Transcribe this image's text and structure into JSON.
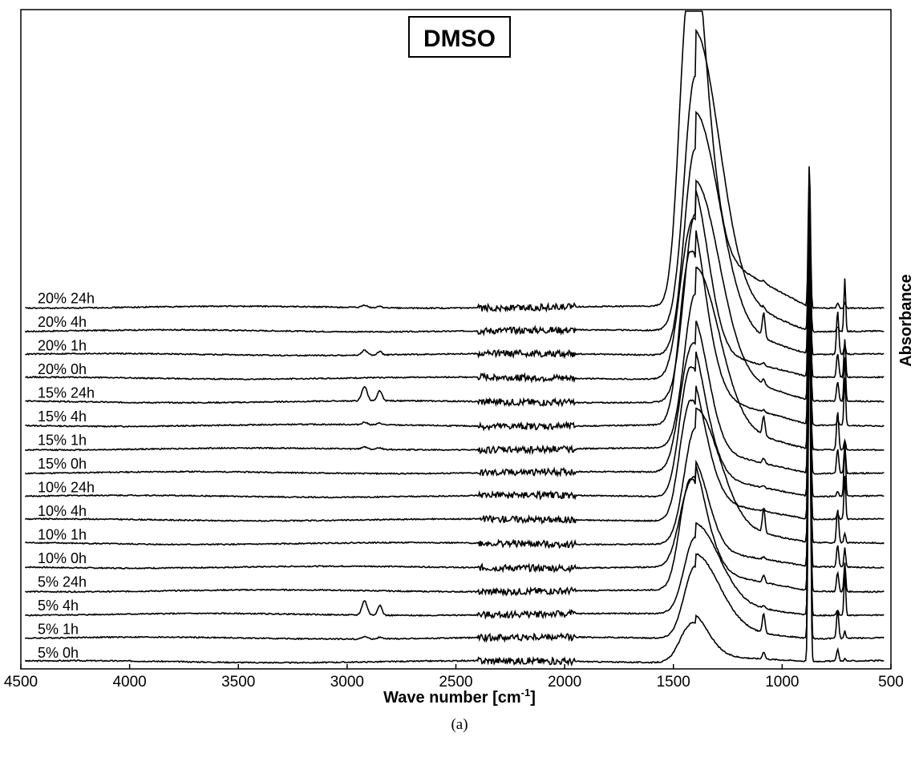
{
  "chart_data": {
    "type": "line",
    "title": "DMSO",
    "xlabel": "Wave number [cm-1]",
    "xlabel_main": "Wave number [cm",
    "xlabel_sup": "-1",
    "xlabel_end": "]",
    "ylabel": "Absorbance",
    "caption": "(a)",
    "xlim": [
      4500,
      500
    ],
    "x_ticks": [
      4500,
      4000,
      3500,
      3000,
      2500,
      2000,
      1500,
      1000,
      500
    ],
    "grid": false,
    "offset_traces": true,
    "series": [
      {
        "name": "5% 0h",
        "peak_1420": 0.9,
        "peak_1410_shape": "flat",
        "peak_880": 7.6,
        "peak_1090": 0.15,
        "peak_750": 0.25,
        "peak_710": 0.05,
        "c_h_2920": 0.0
      },
      {
        "name": "5% 1h",
        "peak_1420": 1.5,
        "peak_1410_shape": "broad",
        "peak_880": 7.3,
        "peak_1090": 0.4,
        "peak_750": 0.6,
        "peak_710": 0.15,
        "c_h_2920": 0.05
      },
      {
        "name": "5% 4h",
        "peak_1420": 1.6,
        "peak_1410_shape": "broad",
        "peak_880": 6.9,
        "peak_1090": 0.05,
        "peak_750": 0.1,
        "peak_710": 0.9,
        "c_h_2920": 0.3
      },
      {
        "name": "5% 24h",
        "peak_1420": 2.3,
        "peak_1410_shape": "sharp",
        "peak_880": 6.6,
        "peak_1090": 0.15,
        "peak_750": 0.4,
        "peak_710": 0.6,
        "c_h_2920": 0.0
      },
      {
        "name": "10% 0h",
        "peak_1420": 2.0,
        "peak_1410_shape": "flat",
        "peak_880": 6.3,
        "peak_1090": 0.05,
        "peak_750": 0.45,
        "peak_710": 0.4,
        "c_h_2920": 0.0
      },
      {
        "name": "10% 1h",
        "peak_1420": 2.4,
        "peak_1410_shape": "broad",
        "peak_880": 6.0,
        "peak_1090": 0.5,
        "peak_750": 0.7,
        "peak_710": 0.2,
        "c_h_2920": 0.0
      },
      {
        "name": "10% 4h",
        "peak_1420": 2.5,
        "peak_1410_shape": "sharp",
        "peak_880": 5.7,
        "peak_1090": 0.05,
        "peak_750": 0.1,
        "peak_710": 0.9,
        "c_h_2920": 0.0
      },
      {
        "name": "10% 24h",
        "peak_1420": 2.7,
        "peak_1410_shape": "sharp",
        "peak_880": 5.3,
        "peak_1090": 0.05,
        "peak_750": 0.1,
        "peak_710": 1.1,
        "c_h_2920": 0.0
      },
      {
        "name": "15% 0h",
        "peak_1420": 2.9,
        "peak_1410_shape": "flat",
        "peak_880": 5.0,
        "peak_1090": 0.1,
        "peak_750": 0.5,
        "peak_710": 0.6,
        "c_h_2920": 0.0
      },
      {
        "name": "15% 1h",
        "peak_1420": 3.2,
        "peak_1410_shape": "broad",
        "peak_880": 4.7,
        "peak_1090": 0.4,
        "peak_750": 0.8,
        "peak_710": 0.2,
        "c_h_2920": 0.05
      },
      {
        "name": "15% 4h",
        "peak_1420": 3.6,
        "peak_1410_shape": "sharp",
        "peak_880": 4.4,
        "peak_1090": 0.05,
        "peak_750": 0.1,
        "peak_710": 1.0,
        "c_h_2920": 0.05
      },
      {
        "name": "15% 24h",
        "peak_1420": 3.9,
        "peak_1410_shape": "broad",
        "peak_880": 4.1,
        "peak_1090": 0.1,
        "peak_750": 0.4,
        "peak_710": 0.9,
        "c_h_2920": 0.3
      },
      {
        "name": "20% 0h",
        "peak_1420": 3.6,
        "peak_1410_shape": "flat",
        "peak_880": 3.8,
        "peak_1090": 0.05,
        "peak_750": 0.5,
        "peak_710": 0.8,
        "c_h_2920": 0.0
      },
      {
        "name": "20% 1h",
        "peak_1420": 4.3,
        "peak_1410_shape": "broad",
        "peak_880": 3.5,
        "peak_1090": 0.5,
        "peak_750": 0.9,
        "peak_710": 0.2,
        "c_h_2920": 0.1
      },
      {
        "name": "20% 4h",
        "peak_1420": 5.3,
        "peak_1410_shape": "broad",
        "peak_880": 3.2,
        "peak_1090": 0.05,
        "peak_750": 0.1,
        "peak_710": 1.1,
        "c_h_2920": 0.0
      },
      {
        "name": "20% 24h",
        "peak_1420": 7.0,
        "peak_1410_shape": "sharp",
        "peak_880": 3.0,
        "peak_1090": 0.05,
        "peak_750": 0.1,
        "peak_710": 0.1,
        "c_h_2920": 0.05
      }
    ]
  }
}
